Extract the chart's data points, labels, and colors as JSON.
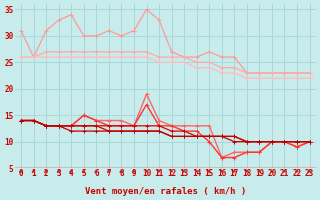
{
  "background_color": "#c8ecec",
  "grid_color": "#a8d8d8",
  "xlabel": "Vent moyen/en rafales ( km/h )",
  "x_values": [
    0,
    1,
    2,
    3,
    4,
    5,
    6,
    7,
    8,
    9,
    10,
    11,
    12,
    13,
    14,
    15,
    16,
    17,
    18,
    19,
    20,
    21,
    22,
    23
  ],
  "series": [
    {
      "color": "#ff9999",
      "linewidth": 0.9,
      "marker": "+",
      "markersize": 3,
      "values": [
        31,
        26,
        31,
        33,
        34,
        30,
        30,
        31,
        30,
        31,
        35,
        33,
        27,
        26,
        26,
        27,
        26,
        26,
        23,
        23,
        23,
        23,
        23,
        23
      ]
    },
    {
      "color": "#ffaaaa",
      "linewidth": 0.9,
      "marker": "+",
      "markersize": 3,
      "values": [
        26,
        26,
        27,
        27,
        27,
        27,
        27,
        27,
        27,
        27,
        27,
        26,
        26,
        26,
        25,
        25,
        24,
        24,
        23,
        23,
        23,
        23,
        23,
        23
      ]
    },
    {
      "color": "#ffbbbb",
      "linewidth": 0.9,
      "marker": "+",
      "markersize": 3,
      "values": [
        26,
        26,
        26,
        26,
        26,
        26,
        26,
        26,
        26,
        26,
        26,
        25,
        25,
        25,
        24,
        24,
        23,
        23,
        22,
        22,
        22,
        22,
        22,
        22
      ]
    },
    {
      "color": "#ff6666",
      "linewidth": 1.0,
      "marker": "+",
      "markersize": 3,
      "values": [
        14,
        14,
        13,
        13,
        13,
        15,
        14,
        14,
        14,
        13,
        19,
        14,
        13,
        13,
        13,
        13,
        7,
        8,
        8,
        8,
        10,
        10,
        9,
        10
      ]
    },
    {
      "color": "#ff3333",
      "linewidth": 1.0,
      "marker": "+",
      "markersize": 3,
      "values": [
        14,
        14,
        13,
        13,
        13,
        15,
        14,
        13,
        13,
        13,
        17,
        13,
        13,
        12,
        12,
        10,
        7,
        7,
        8,
        8,
        10,
        10,
        9,
        10
      ]
    },
    {
      "color": "#dd0000",
      "linewidth": 0.9,
      "marker": "+",
      "markersize": 3,
      "values": [
        14,
        14,
        13,
        13,
        13,
        13,
        13,
        13,
        13,
        13,
        13,
        13,
        12,
        12,
        11,
        11,
        11,
        11,
        10,
        10,
        10,
        10,
        10,
        10
      ]
    },
    {
      "color": "#cc0000",
      "linewidth": 0.9,
      "marker": "+",
      "markersize": 3,
      "values": [
        14,
        14,
        13,
        13,
        13,
        13,
        13,
        12,
        12,
        12,
        12,
        12,
        11,
        11,
        11,
        11,
        11,
        11,
        10,
        10,
        10,
        10,
        10,
        10
      ]
    },
    {
      "color": "#bb0000",
      "linewidth": 0.9,
      "marker": "+",
      "markersize": 3,
      "values": [
        14,
        14,
        13,
        13,
        12,
        12,
        12,
        12,
        12,
        12,
        12,
        12,
        11,
        11,
        11,
        11,
        11,
        10,
        10,
        10,
        10,
        10,
        10,
        10
      ]
    }
  ],
  "arrow_color": "#cc2222",
  "ylim": [
    5,
    36
  ],
  "yticks": [
    5,
    10,
    15,
    20,
    25,
    30,
    35
  ],
  "xlim": [
    -0.5,
    23.5
  ],
  "tick_color": "#cc0000",
  "tick_fontsize": 5.5,
  "label_fontsize": 6.5
}
